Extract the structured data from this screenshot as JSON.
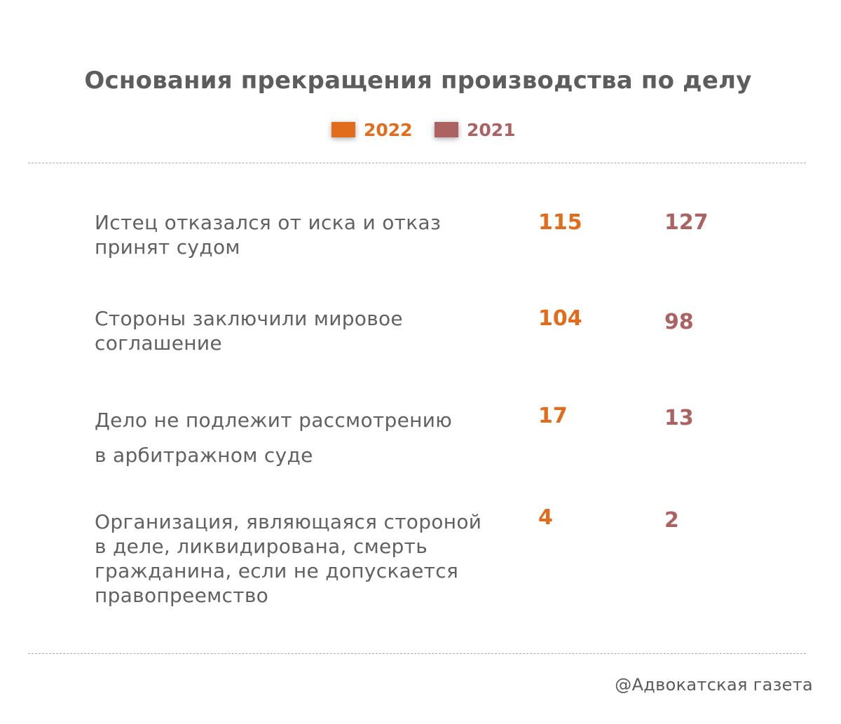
{
  "chart_data": {
    "type": "table",
    "title": "Основания прекращения производства по делу",
    "series": [
      {
        "name": "2022",
        "color": "#e06c1c",
        "values": [
          115,
          104,
          17,
          4
        ]
      },
      {
        "name": "2021",
        "color": "#ad6262",
        "values": [
          127,
          98,
          13,
          2
        ]
      }
    ],
    "categories": [
      [
        "Истец отказался от иска и отказ",
        "принят судом"
      ],
      [
        "Стороны заключили мировое",
        "соглашение"
      ],
      [
        "Дело не подлежит рассмотрению",
        "в арбитражном суде"
      ],
      [
        "Организация, являющаяся стороной",
        "в деле, ликвидирована, смерть",
        "гражданина, если не допускается",
        "правопреемство"
      ]
    ],
    "legend_position": "top-center"
  },
  "credit": "@Адвокатская газета"
}
